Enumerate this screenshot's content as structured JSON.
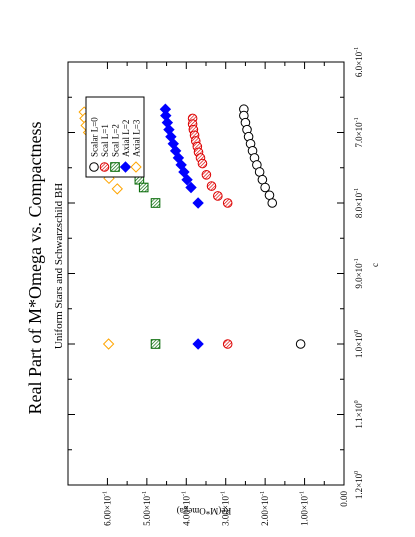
{
  "chart_data": {
    "type": "scatter",
    "orientation": "rotated-90-ccw",
    "title": "Real Part of M*Omega vs. Compactness",
    "subtitle": "Uniform Stars and Schwarzschild BH",
    "xlabel": "c",
    "ylabel": "Re(M*Omega)",
    "xlim": [
      0.6,
      1.2
    ],
    "ylim": [
      0.0,
      0.7
    ],
    "x_ticks": [
      {
        "value": 0.6,
        "label": "6.0×10",
        "exp": "-1"
      },
      {
        "value": 0.7,
        "label": "7.0×10",
        "exp": "-1"
      },
      {
        "value": 0.8,
        "label": "8.0×10",
        "exp": "-1"
      },
      {
        "value": 0.9,
        "label": "9.0×10",
        "exp": "-1"
      },
      {
        "value": 1.0,
        "label": "1.0×10",
        "exp": "0"
      },
      {
        "value": 1.1,
        "label": "1.1×10",
        "exp": "0"
      },
      {
        "value": 1.2,
        "label": "1.2×10",
        "exp": "0"
      }
    ],
    "y_ticks": [
      {
        "value": 0.0,
        "label": "0.00",
        "exp": ""
      },
      {
        "value": 0.1,
        "label": "1.00×10",
        "exp": "-1"
      },
      {
        "value": 0.2,
        "label": "2.00×10",
        "exp": "-1"
      },
      {
        "value": 0.3,
        "label": "3.00×10",
        "exp": "-1"
      },
      {
        "value": 0.4,
        "label": "4.00×10",
        "exp": "-1"
      },
      {
        "value": 0.5,
        "label": "5.00×10",
        "exp": "-1"
      },
      {
        "value": 0.6,
        "label": "6.00×10",
        "exp": "-1"
      }
    ],
    "legend_position": "top-left",
    "series": [
      {
        "name": "Scalar L=0",
        "marker": "open-circle",
        "color": "#000000",
        "x": [
          0.667,
          0.676,
          0.686,
          0.696,
          0.706,
          0.716,
          0.726,
          0.736,
          0.746,
          0.756,
          0.767,
          0.778,
          0.789,
          0.8,
          1.0
        ],
        "y": [
          0.254,
          0.254,
          0.25,
          0.246,
          0.242,
          0.237,
          0.232,
          0.227,
          0.221,
          0.214,
          0.207,
          0.2,
          0.189,
          0.182,
          0.11
        ]
      },
      {
        "name": "Scal L=1",
        "marker": "hatched-circle",
        "color": "#dd0000",
        "x": [
          0.68,
          0.688,
          0.696,
          0.704,
          0.712,
          0.72,
          0.728,
          0.736,
          0.744,
          0.76,
          0.776,
          0.79,
          0.8,
          1.0
        ],
        "y": [
          0.384,
          0.384,
          0.382,
          0.379,
          0.376,
          0.372,
          0.369,
          0.364,
          0.359,
          0.349,
          0.336,
          0.32,
          0.295,
          0.295
        ]
      },
      {
        "name": "Scal L=2",
        "marker": "hatched-square",
        "color": "#006600",
        "x": [
          0.667,
          0.676,
          0.686,
          0.696,
          0.706,
          0.716,
          0.726,
          0.736,
          0.746,
          0.756,
          0.767,
          0.778,
          0.8,
          1.0
        ],
        "y": [
          0.568,
          0.567,
          0.566,
          0.562,
          0.558,
          0.552,
          0.547,
          0.542,
          0.536,
          0.528,
          0.519,
          0.508,
          0.478,
          0.478
        ]
      },
      {
        "name": "Axial L=2",
        "marker": "filled-diamond",
        "color": "#0000ff",
        "x": [
          0.667,
          0.676,
          0.686,
          0.696,
          0.706,
          0.716,
          0.726,
          0.736,
          0.746,
          0.756,
          0.767,
          0.778,
          0.8,
          1.0
        ],
        "y": [
          0.453,
          0.452,
          0.448,
          0.444,
          0.439,
          0.433,
          0.427,
          0.42,
          0.413,
          0.406,
          0.398,
          0.388,
          0.37,
          0.37
        ]
      },
      {
        "name": "Axial L=3",
        "marker": "open-diamond",
        "color": "#ffa500",
        "x": [
          0.671,
          0.68,
          0.69,
          0.7,
          0.71,
          0.72,
          0.73,
          0.74,
          0.75,
          0.765,
          0.78,
          1.0
        ],
        "y": [
          0.659,
          0.657,
          0.654,
          0.648,
          0.642,
          0.635,
          0.627,
          0.619,
          0.609,
          0.596,
          0.575,
          0.597
        ]
      }
    ]
  }
}
